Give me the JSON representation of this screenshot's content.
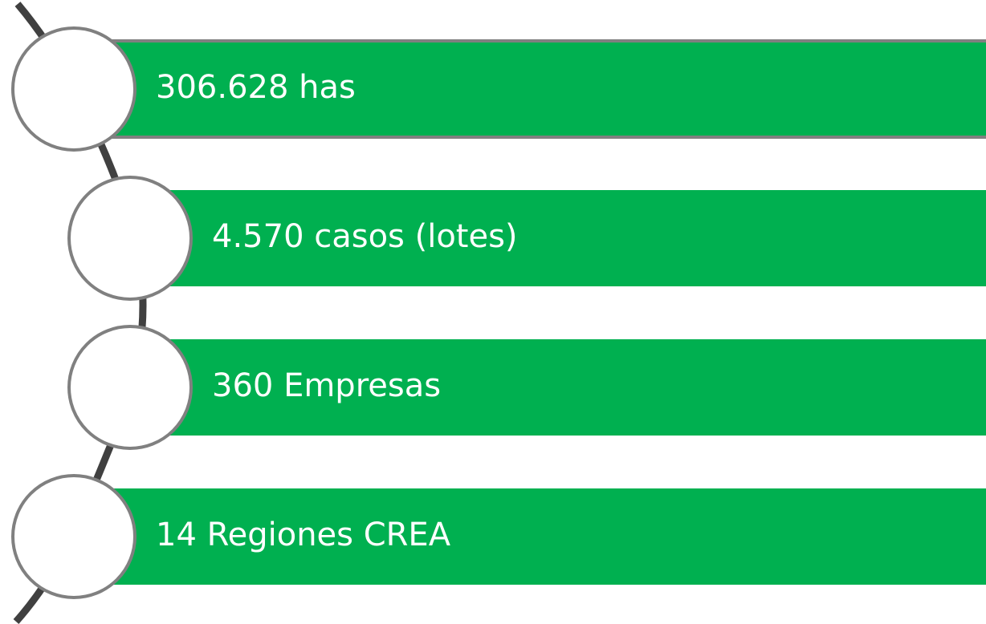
{
  "items": [
    {
      "label": "306.628 has"
    },
    {
      "label": "4.570 casos (lotes)"
    },
    {
      "label": "360 Empresas"
    },
    {
      "label": "14 Regiones CREA"
    }
  ]
}
